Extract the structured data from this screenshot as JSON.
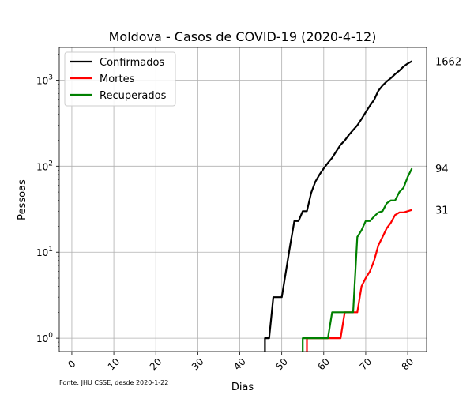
{
  "chart_data": {
    "type": "line",
    "title": "Moldova - Casos de COVID-19 (2020-4-12)",
    "xlabel": "Dias",
    "ylabel": "Pessoas",
    "yscale": "log",
    "xlim": [
      -3,
      84.5
    ],
    "ylim": [
      0.7,
      2400
    ],
    "x_ticks": [
      0,
      10,
      20,
      30,
      40,
      50,
      60,
      70,
      80
    ],
    "y_ticks": [
      {
        "value": 1,
        "base": "10",
        "exp": "0"
      },
      {
        "value": 10,
        "base": "10",
        "exp": "1"
      },
      {
        "value": 100,
        "base": "10",
        "exp": "2"
      },
      {
        "value": 1000,
        "base": "10",
        "exp": "3"
      }
    ],
    "grid": true,
    "legend_position": "top-left",
    "source_note": "Fonte: JHU CSSE, desde 2020-1-22",
    "series": [
      {
        "name": "Confirmados",
        "color": "#000000",
        "end_label": "1662",
        "points": [
          [
            46,
            0.5
          ],
          [
            46,
            1
          ],
          [
            47,
            1
          ],
          [
            48,
            3
          ],
          [
            49,
            3
          ],
          [
            50,
            3
          ],
          [
            51,
            6
          ],
          [
            52,
            12
          ],
          [
            53,
            23
          ],
          [
            54,
            23
          ],
          [
            55,
            30
          ],
          [
            56,
            30
          ],
          [
            57,
            49
          ],
          [
            58,
            66
          ],
          [
            59,
            80
          ],
          [
            60,
            94
          ],
          [
            61,
            109
          ],
          [
            62,
            125
          ],
          [
            63,
            149
          ],
          [
            64,
            177
          ],
          [
            65,
            199
          ],
          [
            66,
            231
          ],
          [
            67,
            263
          ],
          [
            68,
            298
          ],
          [
            69,
            353
          ],
          [
            70,
            423
          ],
          [
            71,
            505
          ],
          [
            72,
            591
          ],
          [
            73,
            752
          ],
          [
            74,
            864
          ],
          [
            75,
            965
          ],
          [
            76,
            1056
          ],
          [
            77,
            1174
          ],
          [
            78,
            1289
          ],
          [
            79,
            1438
          ],
          [
            80,
            1560
          ],
          [
            81,
            1662
          ]
        ]
      },
      {
        "name": "Mortes",
        "color": "#ff0000",
        "end_label": "31",
        "points": [
          [
            56,
            0.5
          ],
          [
            56,
            1
          ],
          [
            57,
            1
          ],
          [
            58,
            1
          ],
          [
            59,
            1
          ],
          [
            60,
            1
          ],
          [
            61,
            1
          ],
          [
            62,
            1
          ],
          [
            63,
            1
          ],
          [
            64,
            1
          ],
          [
            65,
            2
          ],
          [
            66,
            2
          ],
          [
            67,
            2
          ],
          [
            68,
            2
          ],
          [
            69,
            4
          ],
          [
            70,
            5
          ],
          [
            71,
            6
          ],
          [
            72,
            8
          ],
          [
            73,
            12
          ],
          [
            74,
            15
          ],
          [
            75,
            19
          ],
          [
            76,
            22
          ],
          [
            77,
            27
          ],
          [
            78,
            29
          ],
          [
            79,
            29
          ],
          [
            80,
            30
          ],
          [
            81,
            31
          ]
        ]
      },
      {
        "name": "Recuperados",
        "color": "#008000",
        "end_label": "94",
        "points": [
          [
            55,
            0.5
          ],
          [
            55,
            1
          ],
          [
            56,
            1
          ],
          [
            57,
            1
          ],
          [
            58,
            1
          ],
          [
            59,
            1
          ],
          [
            60,
            1
          ],
          [
            61,
            1
          ],
          [
            62,
            2
          ],
          [
            63,
            2
          ],
          [
            64,
            2
          ],
          [
            65,
            2
          ],
          [
            66,
            2
          ],
          [
            67,
            2
          ],
          [
            68,
            15
          ],
          [
            69,
            18
          ],
          [
            70,
            23
          ],
          [
            71,
            23
          ],
          [
            72,
            26
          ],
          [
            73,
            29
          ],
          [
            74,
            30
          ],
          [
            75,
            37
          ],
          [
            76,
            40
          ],
          [
            77,
            40
          ],
          [
            78,
            50
          ],
          [
            79,
            56
          ],
          [
            80,
            75
          ],
          [
            81,
            94
          ]
        ]
      }
    ]
  }
}
